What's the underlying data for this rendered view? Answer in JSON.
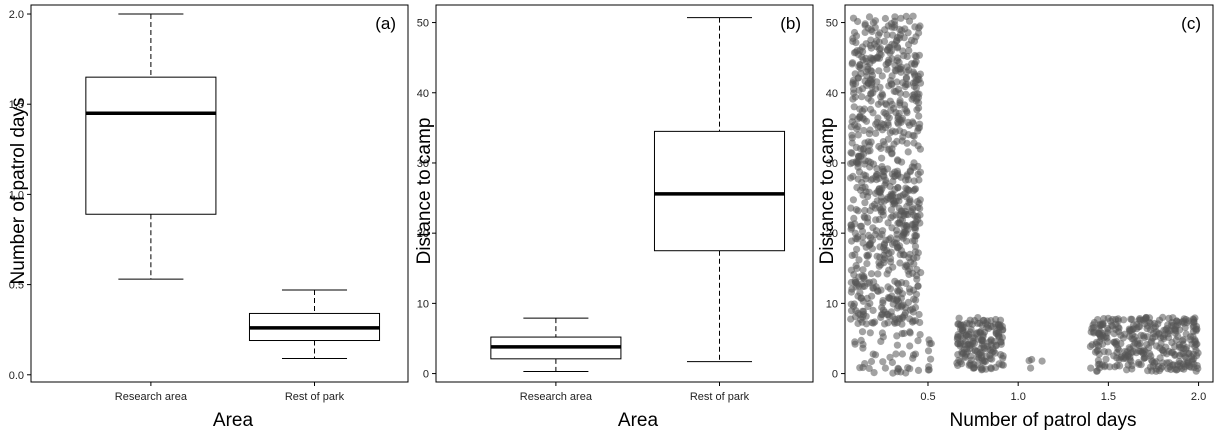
{
  "chart_data": [
    {
      "type": "box",
      "panel_label": "(a)",
      "xlabel": "Area",
      "ylabel": "Number of patrol days",
      "categories": [
        "Research area",
        "Rest of park"
      ],
      "boxes": [
        {
          "min": 0.53,
          "q1": 0.89,
          "median": 1.45,
          "q3": 1.65,
          "max": 2.0
        },
        {
          "min": 0.09,
          "q1": 0.19,
          "median": 0.26,
          "q3": 0.34,
          "max": 0.47
        }
      ],
      "ylim": [
        -0.04,
        2.05
      ],
      "yticks": [
        0.0,
        0.5,
        1.0,
        1.5,
        2.0
      ],
      "ytick_labels": [
        "0.0",
        "0.5",
        "1.0",
        "1.5",
        "2.0"
      ],
      "grid": false
    },
    {
      "type": "box",
      "panel_label": "(b)",
      "xlabel": "Area",
      "ylabel": "Distance to camp",
      "categories": [
        "Research area",
        "Rest of park"
      ],
      "boxes": [
        {
          "min": 0.3,
          "q1": 2.1,
          "median": 3.8,
          "q3": 5.2,
          "max": 7.9
        },
        {
          "min": 1.7,
          "q1": 17.5,
          "median": 25.6,
          "q3": 34.5,
          "max": 50.7
        }
      ],
      "ylim": [
        -1.2,
        52.5
      ],
      "yticks": [
        0,
        10,
        20,
        30,
        40,
        50
      ],
      "ytick_labels": [
        "0",
        "10",
        "20",
        "30",
        "40",
        "50"
      ],
      "grid": false
    },
    {
      "type": "scatter",
      "panel_label": "(c)",
      "xlabel": "Number of patrol days",
      "ylabel": "Distance to camp",
      "xlim": [
        0.04,
        2.08
      ],
      "ylim": [
        -1.2,
        52.5
      ],
      "xticks": [
        0.5,
        1.0,
        1.5,
        2.0
      ],
      "xtick_labels": [
        "0.5",
        "1.0",
        "1.5",
        "2.0"
      ],
      "yticks": [
        0,
        10,
        20,
        30,
        40,
        50
      ],
      "ytick_labels": [
        "0",
        "10",
        "20",
        "30",
        "40",
        "50"
      ],
      "point_color": "#555555",
      "point_alpha": 0.55,
      "clusters": [
        {
          "x_range": [
            0.07,
            0.46
          ],
          "y_range": [
            7,
            51
          ],
          "n": 780
        },
        {
          "x_range": [
            0.07,
            0.47
          ],
          "y_range": [
            0,
            6
          ],
          "n": 45
        },
        {
          "x_range": [
            0.5,
            0.52
          ],
          "y_range": [
            0.5,
            5
          ],
          "n": 8
        },
        {
          "x_range": [
            0.66,
            0.92
          ],
          "y_range": [
            0.5,
            8
          ],
          "n": 170
        },
        {
          "x_range": [
            1.05,
            1.15
          ],
          "y_range": [
            0.5,
            3
          ],
          "n": 4
        },
        {
          "x_range": [
            1.4,
            2.0
          ],
          "y_range": [
            0.3,
            8
          ],
          "n": 330
        }
      ],
      "grid": false
    }
  ]
}
